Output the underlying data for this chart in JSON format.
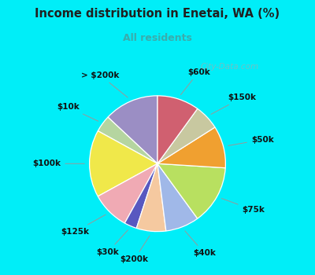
{
  "title": "Income distribution in Enetai, WA (%)",
  "subtitle": "All residents",
  "labels": [
    "> $200k",
    "$10k",
    "$100k",
    "$125k",
    "$30k",
    "$200k",
    "$40k",
    "$75k",
    "$50k",
    "$150k",
    "$60k"
  ],
  "sizes": [
    13,
    4,
    16,
    9,
    3,
    7,
    8,
    14,
    10,
    6,
    10
  ],
  "colors": [
    "#9b8ec4",
    "#b5d5a0",
    "#f0e84a",
    "#f0aab4",
    "#5858c0",
    "#f5c9a0",
    "#a0b8e8",
    "#b8e060",
    "#f0a030",
    "#c8c8a0",
    "#d06070"
  ],
  "bg_color_top": "#00eef8",
  "bg_color_chart": "#d8f5e8",
  "title_color": "#202020",
  "subtitle_color": "#3aacac",
  "watermark": "City-Data.com",
  "label_fontsize": 7.5,
  "startangle": 90,
  "figsize": [
    4.0,
    3.5
  ],
  "dpi": 100
}
